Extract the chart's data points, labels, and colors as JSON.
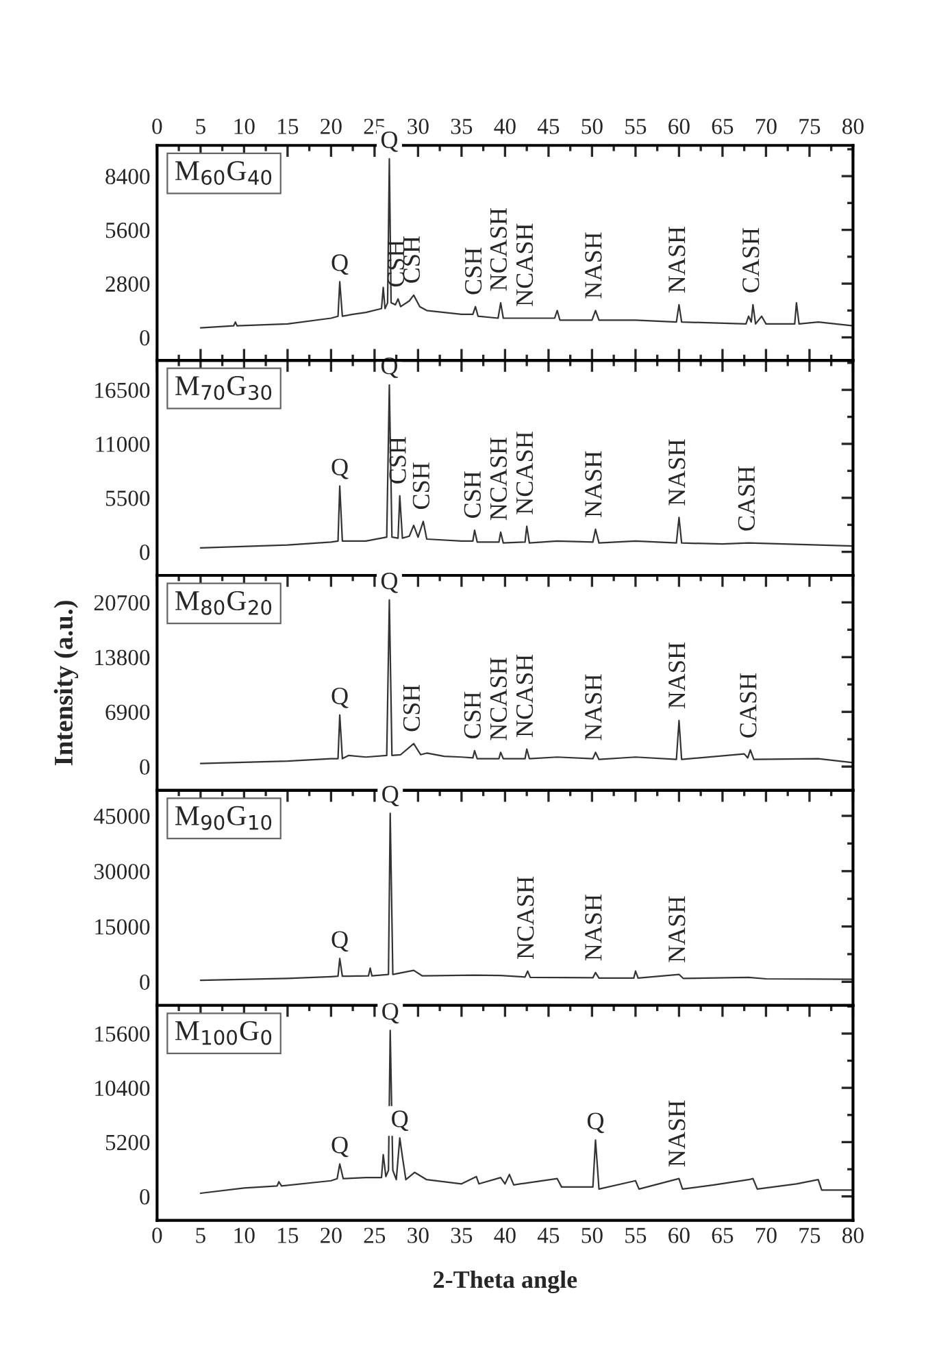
{
  "chart_data": [
    {
      "type": "line",
      "title": "M$_{60}$G$_{40}$",
      "color": "#333333",
      "line_style": "solid",
      "marker": "none",
      "grid": false,
      "legend": false,
      "tick_labels": "y",
      "x": [
        5,
        8.8,
        9,
        9.2,
        15,
        20,
        20.8,
        21,
        21.3,
        22.5,
        24,
        25.8,
        26,
        26.2,
        26.5,
        26.7,
        26.9,
        27.4,
        27.7,
        28,
        29,
        29.5,
        30.2,
        31,
        33,
        35,
        36.3,
        36.6,
        36.9,
        39.2,
        39.5,
        39.8,
        42.5,
        45.7,
        46,
        46.3,
        50,
        50.4,
        50.8,
        55,
        59.7,
        60,
        60.3,
        67.7,
        68,
        68.3,
        68.5,
        68.8,
        69.5,
        70,
        73.3,
        73.5,
        73.8,
        76,
        80
      ],
      "values": [
        500,
        600,
        800,
        600,
        700,
        1000,
        1100,
        2900,
        1100,
        1200,
        1300,
        1500,
        2600,
        1500,
        1800,
        9300,
        1800,
        1700,
        2000,
        1600,
        1900,
        2200,
        1600,
        1400,
        1300,
        1200,
        1200,
        1600,
        1100,
        1000,
        1800,
        1000,
        1000,
        1000,
        1400,
        900,
        900,
        1400,
        900,
        900,
        800,
        1700,
        800,
        700,
        1100,
        800,
        1700,
        700,
        1100,
        700,
        700,
        1800,
        700,
        800,
        600
      ],
      "xlim": [
        0,
        80
      ],
      "xticks": [
        0,
        5,
        10,
        15,
        20,
        25,
        30,
        35,
        40,
        45,
        50,
        55,
        60,
        65,
        70,
        75,
        80
      ],
      "x2lim": [
        0,
        80
      ],
      "x2ticks": [
        0,
        5,
        10,
        15,
        20,
        25,
        30,
        35,
        40,
        45,
        50,
        55,
        60,
        65,
        70,
        75,
        80
      ],
      "ylim": [
        -1200,
        10000
      ],
      "yticks": [
        0,
        2800,
        5600,
        8400
      ],
      "annotations": [
        {
          "text": "Q",
          "x": 21,
          "y": 2900
        },
        {
          "text": "Q",
          "x": 26.7,
          "y": 9300
        },
        {
          "text": "CSH",
          "x": 27.7,
          "y": 2000
        },
        {
          "text": "CSH",
          "x": 29.5,
          "y": 2200
        },
        {
          "text": "CSH",
          "x": 36.6,
          "y": 1600
        },
        {
          "text": "NCASH",
          "x": 39.5,
          "y": 1800
        },
        {
          "text": "NCASH",
          "x": 42.5,
          "y": 1000
        },
        {
          "text": "NASH",
          "x": 50.4,
          "y": 1400
        },
        {
          "text": "NASH",
          "x": 60,
          "y": 1700
        },
        {
          "text": "CASH",
          "x": 68.5,
          "y": 1700
        }
      ]
    },
    {
      "type": "line",
      "title": "M$_{70}$G$_{30}$",
      "color": "#333333",
      "line_style": "solid",
      "marker": "none",
      "grid": false,
      "legend": false,
      "tick_labels": "y",
      "x": [
        5,
        15,
        20,
        20.8,
        21,
        21.3,
        24,
        26.4,
        26.7,
        27,
        27.7,
        27.9,
        28.2,
        29,
        29.5,
        30,
        30.6,
        31,
        35,
        36.3,
        36.5,
        36.8,
        39.3,
        39.5,
        39.8,
        42.3,
        42.5,
        42.8,
        46,
        50.1,
        50.4,
        50.8,
        55,
        59.7,
        60,
        60.3,
        65,
        68,
        80
      ],
      "values": [
        400,
        700,
        1000,
        1100,
        6700,
        1100,
        1100,
        1500,
        17000,
        1500,
        1400,
        5700,
        1400,
        1600,
        2700,
        1500,
        3100,
        1300,
        1100,
        1100,
        2200,
        1000,
        1000,
        2000,
        900,
        1000,
        2600,
        900,
        1100,
        1000,
        2300,
        900,
        1100,
        900,
        3500,
        900,
        800,
        900,
        600
      ],
      "xlim": [
        0,
        80
      ],
      "xticks": [
        0,
        5,
        10,
        15,
        20,
        25,
        30,
        35,
        40,
        45,
        50,
        55,
        60,
        65,
        70,
        75,
        80
      ],
      "ylim": [
        -2400,
        19500
      ],
      "yticks": [
        0,
        5500,
        11000,
        16500
      ],
      "annotations": [
        {
          "text": "Q",
          "x": 21,
          "y": 6700
        },
        {
          "text": "Q",
          "x": 26.7,
          "y": 17000
        },
        {
          "text": "CSH",
          "x": 27.9,
          "y": 5700
        },
        {
          "text": "CSH",
          "x": 30.6,
          "y": 3100
        },
        {
          "text": "CSH",
          "x": 36.5,
          "y": 2200
        },
        {
          "text": "NCASH",
          "x": 39.5,
          "y": 2000
        },
        {
          "text": "NCASH",
          "x": 42.5,
          "y": 2600
        },
        {
          "text": "NASH",
          "x": 50.4,
          "y": 2300
        },
        {
          "text": "NASH",
          "x": 60,
          "y": 3500
        },
        {
          "text": "CASH",
          "x": 68,
          "y": 900
        }
      ]
    },
    {
      "type": "line",
      "title": "M$_{80}$G$_{20}$",
      "color": "#333333",
      "line_style": "solid",
      "marker": "none",
      "grid": false,
      "legend": false,
      "tick_labels": "y",
      "ylabel": "Intensity (a.u.)",
      "x": [
        5,
        15,
        20,
        20.8,
        21,
        21.3,
        22,
        24,
        26.4,
        26.7,
        27,
        28,
        29.5,
        30.3,
        31,
        33,
        35,
        36.3,
        36.5,
        36.8,
        39.3,
        39.5,
        39.8,
        42.3,
        42.5,
        42.8,
        46,
        50.1,
        50.4,
        50.8,
        55,
        59.7,
        60,
        60.3,
        67.5,
        67.9,
        68.2,
        68.6,
        76,
        80
      ],
      "values": [
        400,
        700,
        1000,
        1000,
        6500,
        1000,
        1400,
        1200,
        1400,
        21000,
        1400,
        1500,
        2900,
        1500,
        1700,
        1300,
        1200,
        1100,
        2000,
        1000,
        1000,
        1800,
        1000,
        1000,
        2200,
        1000,
        1200,
        1000,
        1800,
        900,
        1200,
        900,
        5800,
        900,
        1600,
        1100,
        2100,
        900,
        1000,
        500
      ],
      "xlim": [
        0,
        80
      ],
      "xticks": [
        0,
        5,
        10,
        15,
        20,
        25,
        30,
        35,
        40,
        45,
        50,
        55,
        60,
        65,
        70,
        75,
        80
      ],
      "ylim": [
        -3000,
        24100
      ],
      "yticks": [
        0,
        6900,
        13800,
        20700
      ],
      "annotations": [
        {
          "text": "Q",
          "x": 21,
          "y": 6500
        },
        {
          "text": "Q",
          "x": 26.7,
          "y": 21000
        },
        {
          "text": "CSH",
          "x": 29.5,
          "y": 2900
        },
        {
          "text": "CSH",
          "x": 36.5,
          "y": 2000
        },
        {
          "text": "NCASH",
          "x": 39.5,
          "y": 1800
        },
        {
          "text": "NCASH",
          "x": 42.5,
          "y": 2200
        },
        {
          "text": "NASH",
          "x": 50.4,
          "y": 1800
        },
        {
          "text": "NASH",
          "x": 60,
          "y": 5800
        },
        {
          "text": "CASH",
          "x": 68.2,
          "y": 2100
        }
      ]
    },
    {
      "type": "line",
      "title": "M$_{90}$G$_{10}$",
      "color": "#333333",
      "line_style": "solid",
      "marker": "none",
      "grid": false,
      "legend": false,
      "tick_labels": "y",
      "x": [
        5,
        15,
        20,
        20.8,
        21,
        21.3,
        24.3,
        24.5,
        24.7,
        26.6,
        26.8,
        27.1,
        29.5,
        30.5,
        36.5,
        39.5,
        42.3,
        42.6,
        42.9,
        50.1,
        50.4,
        50.8,
        54.8,
        55,
        55.3,
        60,
        60.5,
        68,
        70,
        80
      ],
      "values": [
        400,
        900,
        1400,
        1500,
        6300,
        1500,
        1600,
        3700,
        1600,
        2000,
        45700,
        2000,
        3100,
        1600,
        1800,
        1700,
        1300,
        2900,
        1200,
        1100,
        2500,
        1000,
        1000,
        2900,
        1000,
        2000,
        900,
        1200,
        800,
        700
      ],
      "xlim": [
        0,
        80
      ],
      "xticks": [
        0,
        5,
        10,
        15,
        20,
        25,
        30,
        35,
        40,
        45,
        50,
        55,
        60,
        65,
        70,
        75,
        80
      ],
      "ylim": [
        -6400,
        51900
      ],
      "yticks": [
        0,
        15000,
        30000,
        45000
      ],
      "annotations": [
        {
          "text": "Q",
          "x": 21,
          "y": 6300
        },
        {
          "text": "Q",
          "x": 26.8,
          "y": 45700
        },
        {
          "text": "NCASH",
          "x": 42.6,
          "y": 2900
        },
        {
          "text": "NASH",
          "x": 50.4,
          "y": 2500
        },
        {
          "text": "NASH",
          "x": 60,
          "y": 2000
        }
      ]
    },
    {
      "type": "line",
      "title": "M$_{100}$G$_{0}$",
      "color": "#333333",
      "line_style": "solid",
      "marker": "none",
      "grid": false,
      "legend": false,
      "xlabel": "2-Theta angle",
      "x": [
        5,
        10,
        13.8,
        14,
        14.3,
        20,
        20.7,
        21,
        21.4,
        24,
        25.8,
        26,
        26.3,
        26.6,
        26.8,
        27.1,
        27.5,
        27.9,
        28.2,
        28.6,
        29.6,
        31,
        35,
        36.7,
        37,
        39.5,
        40,
        40.5,
        41,
        42.6,
        46,
        46.5,
        50.1,
        50.4,
        50.8,
        55,
        55.4,
        60,
        60.4,
        64,
        68,
        68.5,
        69,
        73.5,
        76,
        76.4,
        80
      ],
      "values": [
        300,
        800,
        1000,
        1400,
        1000,
        1500,
        1700,
        3100,
        1700,
        1800,
        1800,
        4000,
        1900,
        2500,
        15900,
        2500,
        1600,
        5600,
        3800,
        1600,
        2300,
        1600,
        1200,
        1900,
        1200,
        1800,
        1200,
        2100,
        1100,
        1300,
        1700,
        900,
        900,
        5400,
        700,
        1500,
        700,
        1700,
        700,
        1100,
        1600,
        1700,
        700,
        1200,
        1600,
        600,
        600
      ],
      "xlim": [
        0,
        80
      ],
      "xticks": [
        0,
        5,
        10,
        15,
        20,
        25,
        30,
        35,
        40,
        45,
        50,
        55,
        60,
        65,
        70,
        75,
        80
      ],
      "ylim": [
        -2300,
        18300
      ],
      "yticks": [
        0,
        5200,
        10400,
        15600
      ],
      "annotations": [
        {
          "text": "Q",
          "x": 21,
          "y": 3100
        },
        {
          "text": "Q",
          "x": 26.8,
          "y": 15900
        },
        {
          "text": "Q",
          "x": 27.9,
          "y": 5600
        },
        {
          "text": "Q",
          "x": 50.4,
          "y": 5400
        },
        {
          "text": "NASH",
          "x": 60,
          "y": 1700
        }
      ]
    }
  ]
}
